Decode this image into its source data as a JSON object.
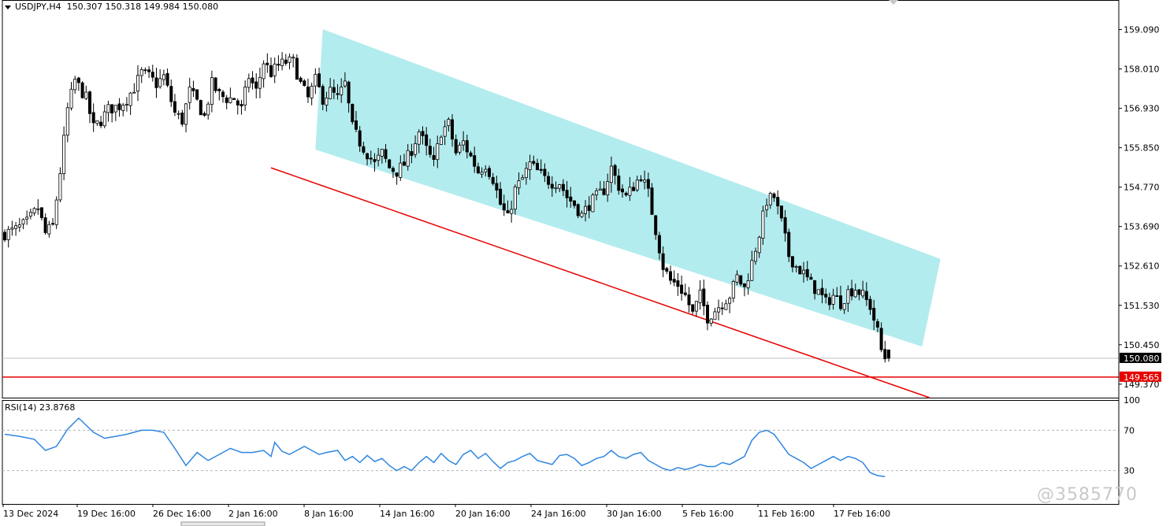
{
  "header": {
    "symbol": "USDJPY,H4",
    "ohlc": "150.307 150.318 149.984 150.080"
  },
  "rsi": {
    "label": "RSI(14) 23.8768",
    "levels": [
      100,
      70,
      30
    ]
  },
  "price_axis": {
    "ticks": [
      "159.090",
      "158.010",
      "156.930",
      "155.850",
      "154.770",
      "153.690",
      "152.610",
      "151.530",
      "150.450",
      "149.370"
    ],
    "current_price": "150.080",
    "line_price": "149.565"
  },
  "time_axis": {
    "labels": [
      "13 Dec 2024",
      "19 Dec 16:00",
      "26 Dec 16:00",
      "2 Jan 16:00",
      "8 Jan 16:00",
      "14 Jan 16:00",
      "20 Jan 16:00",
      "24 Jan 16:00",
      "30 Jan 16:00",
      "5 Feb 16:00",
      "11 Feb 16:00",
      "17 Feb 16:00"
    ]
  },
  "watermark": "@3585770",
  "colors": {
    "bull": "#000000",
    "bear": "#000000",
    "channel": "#b3ecee",
    "trendline": "#e60000",
    "hline": "#e60000",
    "rsi": "#2f86e0",
    "grid": "#b4b4b4"
  },
  "chart_data": {
    "type": "candlestick",
    "symbol": "USDJPY",
    "timeframe": "H4",
    "title": "USDJPY,H4",
    "last": {
      "open": 150.307,
      "high": 150.318,
      "low": 149.984,
      "close": 150.08
    },
    "ylim": [
      149.0,
      159.9
    ],
    "price_ticks": [
      159.09,
      158.01,
      156.93,
      155.85,
      154.77,
      153.69,
      152.61,
      151.53,
      150.45,
      149.37
    ],
    "x_labels": [
      "13 Dec 2024",
      "19 Dec 16:00",
      "26 Dec 16:00",
      "2 Jan 16:00",
      "8 Jan 16:00",
      "14 Jan 16:00",
      "20 Jan 16:00",
      "24 Jan 16:00",
      "30 Jan 16:00",
      "5 Feb 16:00",
      "11 Feb 16:00",
      "17 Feb 16:00"
    ],
    "close_path": [
      [
        0,
        153.5
      ],
      [
        3,
        153.6
      ],
      [
        6,
        153.8
      ],
      [
        9,
        154.2
      ],
      [
        11,
        153.5
      ],
      [
        13,
        153.7
      ],
      [
        15,
        155.2
      ],
      [
        17,
        156.9
      ],
      [
        19,
        157.7
      ],
      [
        22,
        157.2
      ],
      [
        24,
        156.4
      ],
      [
        26,
        156.6
      ],
      [
        28,
        156.9
      ],
      [
        31,
        157.0
      ],
      [
        33,
        157.2
      ],
      [
        35,
        157.5
      ],
      [
        37,
        157.9
      ],
      [
        39,
        157.8
      ],
      [
        41,
        157.6
      ],
      [
        43,
        157.8
      ],
      [
        46,
        156.8
      ],
      [
        48,
        156.6
      ],
      [
        50,
        157.4
      ],
      [
        52,
        157.1
      ],
      [
        54,
        156.7
      ],
      [
        56,
        157.6
      ],
      [
        58,
        157.3
      ],
      [
        60,
        157.2
      ],
      [
        62,
        157.2
      ],
      [
        64,
        156.9
      ],
      [
        66,
        157.8
      ],
      [
        68,
        157.4
      ],
      [
        70,
        158.2
      ],
      [
        72,
        157.9
      ],
      [
        74,
        158.1
      ],
      [
        76,
        158.2
      ],
      [
        78,
        158.2
      ],
      [
        80,
        157.6
      ],
      [
        82,
        157.2
      ],
      [
        84,
        157.7
      ],
      [
        86,
        157.2
      ],
      [
        88,
        157.4
      ],
      [
        90,
        157.2
      ],
      [
        92,
        157.6
      ],
      [
        94,
        156.4
      ],
      [
        96,
        156.0
      ],
      [
        98,
        155.7
      ],
      [
        100,
        155.4
      ],
      [
        102,
        155.7
      ],
      [
        104,
        155.3
      ],
      [
        106,
        155.2
      ],
      [
        108,
        155.4
      ],
      [
        110,
        155.8
      ],
      [
        112,
        156.3
      ],
      [
        114,
        155.8
      ],
      [
        116,
        155.4
      ],
      [
        118,
        156.3
      ],
      [
        120,
        156.5
      ],
      [
        122,
        155.7
      ],
      [
        124,
        156.0
      ],
      [
        126,
        155.6
      ],
      [
        128,
        155.2
      ],
      [
        130,
        155.4
      ],
      [
        132,
        155.0
      ],
      [
        134,
        154.3
      ],
      [
        136,
        153.9
      ],
      [
        138,
        154.7
      ],
      [
        140,
        155.0
      ],
      [
        142,
        155.4
      ],
      [
        144,
        155.2
      ],
      [
        146,
        155.0
      ],
      [
        148,
        154.9
      ],
      [
        150,
        154.9
      ],
      [
        152,
        154.5
      ],
      [
        154,
        154.3
      ],
      [
        156,
        154.0
      ],
      [
        158,
        154.3
      ],
      [
        160,
        154.5
      ],
      [
        162,
        154.7
      ],
      [
        164,
        155.3
      ],
      [
        166,
        154.8
      ],
      [
        168,
        154.5
      ],
      [
        170,
        154.8
      ],
      [
        172,
        155.1
      ],
      [
        174,
        154.6
      ],
      [
        176,
        153.6
      ],
      [
        178,
        152.6
      ],
      [
        180,
        152.2
      ],
      [
        182,
        152.1
      ],
      [
        184,
        151.8
      ],
      [
        186,
        151.3
      ],
      [
        188,
        151.8
      ],
      [
        190,
        151.2
      ],
      [
        192,
        151.4
      ],
      [
        194,
        151.6
      ],
      [
        196,
        151.8
      ],
      [
        198,
        152.3
      ],
      [
        200,
        152.0
      ],
      [
        202,
        152.7
      ],
      [
        204,
        153.5
      ],
      [
        206,
        154.4
      ],
      [
        208,
        154.5
      ],
      [
        210,
        153.8
      ],
      [
        212,
        152.9
      ],
      [
        214,
        152.6
      ],
      [
        216,
        152.4
      ],
      [
        218,
        152.1
      ],
      [
        220,
        151.9
      ],
      [
        222,
        151.6
      ],
      [
        224,
        151.8
      ],
      [
        226,
        151.6
      ],
      [
        228,
        151.9
      ],
      [
        230,
        152.0
      ],
      [
        232,
        151.8
      ],
      [
        234,
        151.5
      ],
      [
        236,
        150.8
      ],
      [
        237,
        150.3
      ],
      [
        238,
        150.1
      ]
    ],
    "channel": {
      "upper_start": [
        86,
        159.1
      ],
      "upper_end": [
        253,
        152.8
      ],
      "lower_start": [
        84,
        155.8
      ],
      "lower_end": [
        248,
        150.4
      ]
    },
    "trendline": {
      "start": [
        72,
        155.3
      ],
      "end": [
        250,
        149.0
      ]
    },
    "hline": 149.565,
    "current_price": 150.08,
    "rsi_period": 14,
    "rsi_value": 23.8768,
    "rsi_levels": [
      30,
      70
    ],
    "rsi_ylim": [
      0,
      100
    ],
    "rsi_path": [
      [
        0,
        66
      ],
      [
        4,
        64
      ],
      [
        8,
        61
      ],
      [
        11,
        50
      ],
      [
        14,
        54
      ],
      [
        17,
        71
      ],
      [
        20,
        82
      ],
      [
        24,
        68
      ],
      [
        27,
        62
      ],
      [
        30,
        64
      ],
      [
        33,
        66
      ],
      [
        37,
        70
      ],
      [
        40,
        70
      ],
      [
        43,
        68
      ],
      [
        46,
        52
      ],
      [
        49,
        35
      ],
      [
        52,
        48
      ],
      [
        55,
        40
      ],
      [
        58,
        46
      ],
      [
        61,
        52
      ],
      [
        64,
        48
      ],
      [
        67,
        48
      ],
      [
        70,
        50
      ],
      [
        72,
        44
      ],
      [
        73,
        58
      ],
      [
        75,
        49
      ],
      [
        77,
        46
      ],
      [
        79,
        50
      ],
      [
        81,
        54
      ],
      [
        83,
        50
      ],
      [
        85,
        46
      ],
      [
        87,
        48
      ],
      [
        90,
        50
      ],
      [
        92,
        40
      ],
      [
        94,
        44
      ],
      [
        96,
        38
      ],
      [
        98,
        45
      ],
      [
        100,
        39
      ],
      [
        102,
        42
      ],
      [
        104,
        35
      ],
      [
        106,
        30
      ],
      [
        108,
        34
      ],
      [
        110,
        30
      ],
      [
        112,
        38
      ],
      [
        114,
        44
      ],
      [
        116,
        38
      ],
      [
        118,
        47
      ],
      [
        120,
        40
      ],
      [
        122,
        36
      ],
      [
        124,
        46
      ],
      [
        126,
        50
      ],
      [
        128,
        42
      ],
      [
        130,
        47
      ],
      [
        132,
        39
      ],
      [
        134,
        32
      ],
      [
        136,
        38
      ],
      [
        138,
        40
      ],
      [
        140,
        44
      ],
      [
        142,
        47
      ],
      [
        144,
        40
      ],
      [
        146,
        38
      ],
      [
        148,
        36
      ],
      [
        150,
        45
      ],
      [
        152,
        46
      ],
      [
        154,
        42
      ],
      [
        156,
        35
      ],
      [
        158,
        38
      ],
      [
        160,
        42
      ],
      [
        162,
        44
      ],
      [
        164,
        50
      ],
      [
        166,
        44
      ],
      [
        168,
        42
      ],
      [
        170,
        46
      ],
      [
        172,
        48
      ],
      [
        174,
        40
      ],
      [
        176,
        36
      ],
      [
        178,
        32
      ],
      [
        180,
        30
      ],
      [
        182,
        33
      ],
      [
        184,
        31
      ],
      [
        186,
        33
      ],
      [
        188,
        36
      ],
      [
        190,
        34
      ],
      [
        192,
        34
      ],
      [
        194,
        38
      ],
      [
        196,
        36
      ],
      [
        198,
        40
      ],
      [
        200,
        44
      ],
      [
        202,
        60
      ],
      [
        204,
        68
      ],
      [
        206,
        70
      ],
      [
        208,
        66
      ],
      [
        210,
        56
      ],
      [
        212,
        46
      ],
      [
        214,
        42
      ],
      [
        216,
        38
      ],
      [
        218,
        32
      ],
      [
        220,
        36
      ],
      [
        222,
        40
      ],
      [
        224,
        44
      ],
      [
        226,
        40
      ],
      [
        228,
        44
      ],
      [
        230,
        42
      ],
      [
        232,
        38
      ],
      [
        234,
        28
      ],
      [
        236,
        25
      ],
      [
        238,
        24
      ]
    ]
  }
}
